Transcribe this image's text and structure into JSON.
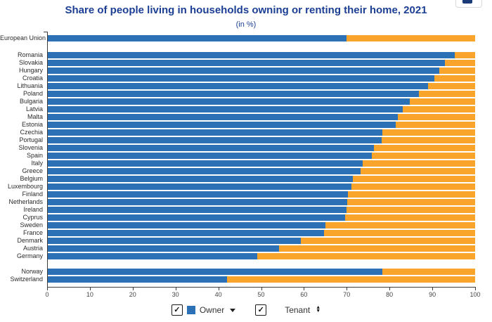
{
  "header": {
    "title": "Share of people living in households owning or renting their home, 2021",
    "subtitle": "(in %)"
  },
  "toolbar": {
    "options_icon": "chart-options-icon"
  },
  "legend": {
    "owner": {
      "label": "Owner",
      "checked": true,
      "swatch_color": "#2c70b5",
      "swatch_icon": "blue-square-icon",
      "sort_icon": "caret-down-icon"
    },
    "tenant": {
      "label": "Tenant",
      "checked": true,
      "sort_icon": "sort-arrows-icon"
    }
  },
  "chart_data": {
    "type": "bar",
    "stacked": true,
    "orientation": "horizontal",
    "title": "Share of people living in households owning or renting their home, 2021",
    "subtitle": "(in %)",
    "xlabel": "",
    "ylabel": "",
    "xlim": [
      0,
      100
    ],
    "x_ticks": [
      0,
      10,
      20,
      30,
      40,
      50,
      60,
      70,
      80,
      90,
      100
    ],
    "grid": false,
    "legend_position": "bottom",
    "series_names": [
      "Owner",
      "Tenant"
    ],
    "colors": {
      "owner": "#2c70b5",
      "tenant": "#f9a52b"
    },
    "rows": [
      {
        "label": "European Union",
        "group": "eu",
        "owner": 69.9,
        "tenant": 30.1
      },
      {
        "label": "Romania",
        "group": "members",
        "owner": 95.3,
        "tenant": 4.7
      },
      {
        "label": "Slovakia",
        "group": "members",
        "owner": 92.9,
        "tenant": 7.1
      },
      {
        "label": "Hungary",
        "group": "members",
        "owner": 91.7,
        "tenant": 8.3
      },
      {
        "label": "Croatia",
        "group": "members",
        "owner": 90.5,
        "tenant": 9.5
      },
      {
        "label": "Lithuania",
        "group": "members",
        "owner": 89.0,
        "tenant": 11.0
      },
      {
        "label": "Poland",
        "group": "members",
        "owner": 86.8,
        "tenant": 13.2
      },
      {
        "label": "Bulgaria",
        "group": "members",
        "owner": 84.8,
        "tenant": 15.2
      },
      {
        "label": "Latvia",
        "group": "members",
        "owner": 83.1,
        "tenant": 16.9
      },
      {
        "label": "Malta",
        "group": "members",
        "owner": 81.9,
        "tenant": 18.1
      },
      {
        "label": "Estonia",
        "group": "members",
        "owner": 81.5,
        "tenant": 18.5
      },
      {
        "label": "Czechia",
        "group": "members",
        "owner": 78.4,
        "tenant": 21.6
      },
      {
        "label": "Portugal",
        "group": "members",
        "owner": 78.2,
        "tenant": 21.8
      },
      {
        "label": "Slovenia",
        "group": "members",
        "owner": 76.3,
        "tenant": 23.7
      },
      {
        "label": "Spain",
        "group": "members",
        "owner": 75.8,
        "tenant": 24.2
      },
      {
        "label": "Italy",
        "group": "members",
        "owner": 73.7,
        "tenant": 26.3
      },
      {
        "label": "Greece",
        "group": "members",
        "owner": 73.3,
        "tenant": 26.7
      },
      {
        "label": "Belgium",
        "group": "members",
        "owner": 71.4,
        "tenant": 28.6
      },
      {
        "label": "Luxembourg",
        "group": "members",
        "owner": 71.1,
        "tenant": 28.9
      },
      {
        "label": "Finland",
        "group": "members",
        "owner": 70.3,
        "tenant": 29.7
      },
      {
        "label": "Netherlands",
        "group": "members",
        "owner": 70.1,
        "tenant": 29.9
      },
      {
        "label": "Ireland",
        "group": "members",
        "owner": 69.9,
        "tenant": 30.1
      },
      {
        "label": "Cyprus",
        "group": "members",
        "owner": 69.7,
        "tenant": 30.3
      },
      {
        "label": "Sweden",
        "group": "members",
        "owner": 65.0,
        "tenant": 35.0
      },
      {
        "label": "France",
        "group": "members",
        "owner": 64.7,
        "tenant": 35.3
      },
      {
        "label": "Denmark",
        "group": "members",
        "owner": 59.2,
        "tenant": 40.8
      },
      {
        "label": "Austria",
        "group": "members",
        "owner": 54.2,
        "tenant": 45.8
      },
      {
        "label": "Germany",
        "group": "members",
        "owner": 49.1,
        "tenant": 50.9
      },
      {
        "label": "Norway",
        "group": "efta",
        "owner": 78.3,
        "tenant": 21.7
      },
      {
        "label": "Switzerland",
        "group": "efta",
        "owner": 42.0,
        "tenant": 58.0
      }
    ]
  }
}
